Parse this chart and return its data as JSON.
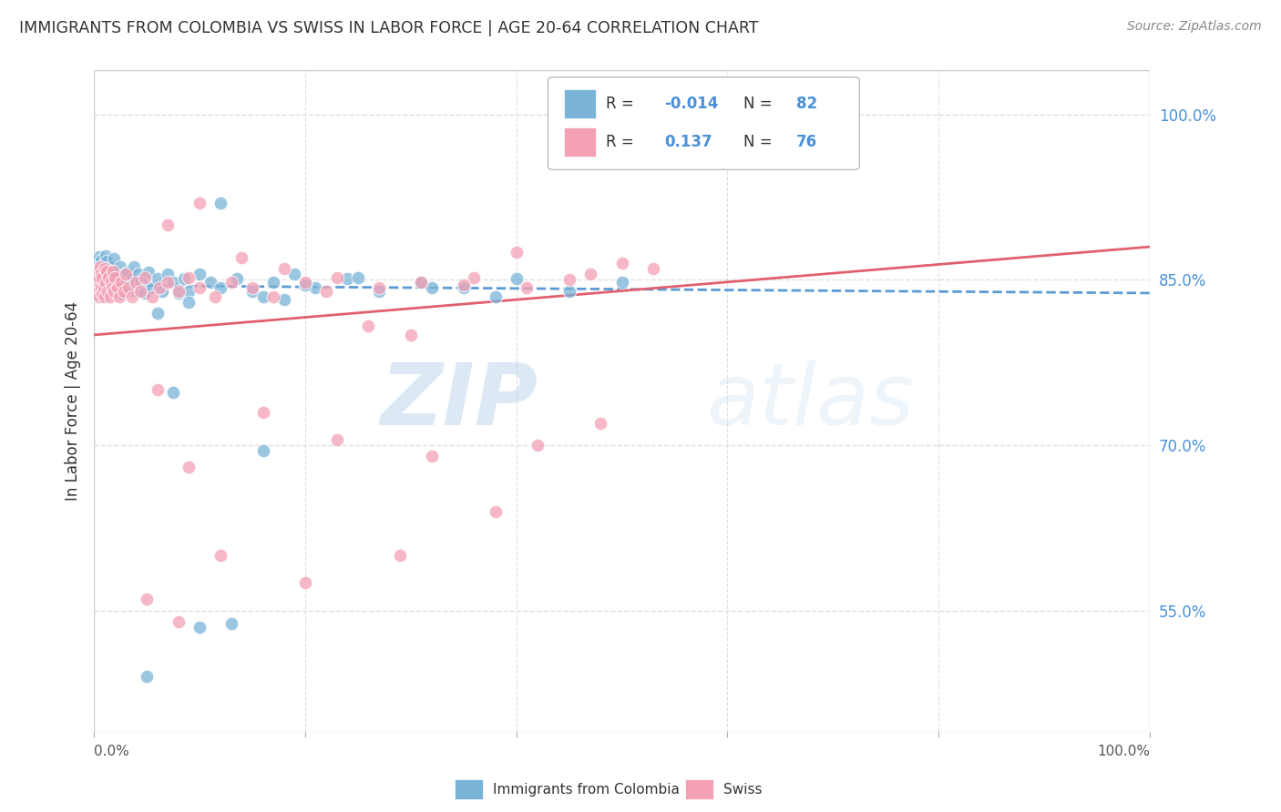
{
  "title": "IMMIGRANTS FROM COLOMBIA VS SWISS IN LABOR FORCE | AGE 20-64 CORRELATION CHART",
  "source": "Source: ZipAtlas.com",
  "ylabel": "In Labor Force | Age 20-64",
  "ytick_labels": [
    "55.0%",
    "70.0%",
    "85.0%",
    "100.0%"
  ],
  "ytick_values": [
    0.55,
    0.7,
    0.85,
    1.0
  ],
  "xlim": [
    0.0,
    1.0
  ],
  "ylim": [
    0.44,
    1.04
  ],
  "series1_name": "Immigrants from Colombia",
  "series1_color": "#7ab3d8",
  "series1_R": -0.014,
  "series1_N": 82,
  "series2_name": "Swiss",
  "series2_color": "#f4a0b5",
  "series2_R": 0.137,
  "series2_N": 76,
  "series1_x": [
    0.002,
    0.003,
    0.004,
    0.004,
    0.005,
    0.005,
    0.006,
    0.006,
    0.007,
    0.007,
    0.008,
    0.008,
    0.009,
    0.009,
    0.01,
    0.01,
    0.011,
    0.011,
    0.012,
    0.012,
    0.013,
    0.013,
    0.014,
    0.015,
    0.016,
    0.017,
    0.018,
    0.019,
    0.02,
    0.021,
    0.022,
    0.023,
    0.025,
    0.026,
    0.028,
    0.03,
    0.032,
    0.034,
    0.036,
    0.038,
    0.04,
    0.042,
    0.045,
    0.048,
    0.052,
    0.055,
    0.06,
    0.065,
    0.07,
    0.075,
    0.08,
    0.085,
    0.09,
    0.1,
    0.11,
    0.12,
    0.135,
    0.15,
    0.17,
    0.19,
    0.21,
    0.24,
    0.27,
    0.31,
    0.35,
    0.4,
    0.45,
    0.5,
    0.06,
    0.09,
    0.12,
    0.16,
    0.2,
    0.25,
    0.32,
    0.38,
    0.16,
    0.1,
    0.05,
    0.075,
    0.13,
    0.18
  ],
  "series1_y": [
    0.847,
    0.858,
    0.865,
    0.852,
    0.871,
    0.843,
    0.862,
    0.855,
    0.868,
    0.839,
    0.857,
    0.848,
    0.863,
    0.836,
    0.86,
    0.845,
    0.872,
    0.853,
    0.849,
    0.867,
    0.858,
    0.84,
    0.855,
    0.862,
    0.848,
    0.857,
    0.843,
    0.869,
    0.853,
    0.84,
    0.858,
    0.847,
    0.862,
    0.838,
    0.855,
    0.848,
    0.857,
    0.843,
    0.851,
    0.862,
    0.84,
    0.855,
    0.848,
    0.838,
    0.857,
    0.843,
    0.851,
    0.84,
    0.855,
    0.848,
    0.838,
    0.851,
    0.84,
    0.855,
    0.848,
    0.843,
    0.851,
    0.84,
    0.848,
    0.855,
    0.843,
    0.851,
    0.84,
    0.848,
    0.843,
    0.851,
    0.84,
    0.848,
    0.82,
    0.83,
    0.92,
    0.835,
    0.845,
    0.852,
    0.843,
    0.835,
    0.695,
    0.535,
    0.49,
    0.748,
    0.538,
    0.832
  ],
  "series2_x": [
    0.002,
    0.003,
    0.004,
    0.004,
    0.005,
    0.005,
    0.006,
    0.007,
    0.007,
    0.008,
    0.008,
    0.009,
    0.01,
    0.01,
    0.011,
    0.012,
    0.013,
    0.014,
    0.015,
    0.016,
    0.017,
    0.018,
    0.019,
    0.02,
    0.022,
    0.024,
    0.026,
    0.028,
    0.03,
    0.033,
    0.036,
    0.04,
    0.044,
    0.048,
    0.055,
    0.062,
    0.07,
    0.08,
    0.09,
    0.1,
    0.115,
    0.13,
    0.15,
    0.17,
    0.2,
    0.23,
    0.27,
    0.31,
    0.36,
    0.41,
    0.47,
    0.53,
    0.07,
    0.1,
    0.14,
    0.18,
    0.22,
    0.26,
    0.3,
    0.35,
    0.4,
    0.45,
    0.5,
    0.06,
    0.09,
    0.16,
    0.23,
    0.32,
    0.42,
    0.48,
    0.38,
    0.29,
    0.2,
    0.12,
    0.05,
    0.08
  ],
  "series2_y": [
    0.838,
    0.848,
    0.858,
    0.84,
    0.852,
    0.835,
    0.862,
    0.843,
    0.856,
    0.838,
    0.852,
    0.843,
    0.86,
    0.835,
    0.848,
    0.858,
    0.84,
    0.852,
    0.835,
    0.848,
    0.843,
    0.858,
    0.84,
    0.852,
    0.843,
    0.835,
    0.848,
    0.84,
    0.855,
    0.843,
    0.835,
    0.848,
    0.84,
    0.852,
    0.835,
    0.843,
    0.848,
    0.84,
    0.852,
    0.843,
    0.835,
    0.848,
    0.843,
    0.835,
    0.848,
    0.852,
    0.843,
    0.848,
    0.852,
    0.843,
    0.855,
    0.86,
    0.9,
    0.92,
    0.87,
    0.86,
    0.84,
    0.808,
    0.8,
    0.845,
    0.875,
    0.85,
    0.865,
    0.75,
    0.68,
    0.73,
    0.705,
    0.69,
    0.7,
    0.72,
    0.64,
    0.6,
    0.575,
    0.6,
    0.56,
    0.54
  ],
  "background_color": "#ffffff",
  "grid_color": "#d8d8d8",
  "title_color": "#333333",
  "axis_color": "#888888",
  "ytick_color": "#4a90d9",
  "watermark_zip": "ZIP",
  "watermark_atlas": "atlas",
  "trend1_color": "#5b9bd5",
  "trend2_color": "#e06070",
  "legend_R_color": "#4a90d9",
  "legend_label_color": "#333333"
}
